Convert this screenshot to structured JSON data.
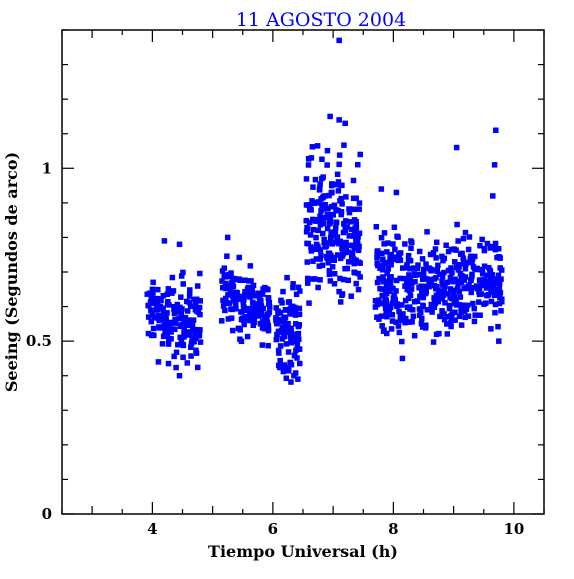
{
  "chart_data": {
    "type": "scatter",
    "title": "11 AGOSTO 2004",
    "xlabel": "Tiempo Universal (h)",
    "ylabel": "Seeing (Segundos de arco)",
    "xlim": [
      2.5,
      10.5
    ],
    "ylim": [
      0,
      1.4
    ],
    "xticks": [
      4,
      6,
      8,
      10
    ],
    "xtick_labels": [
      "4",
      "6",
      "8",
      "10"
    ],
    "yticks": [
      0,
      0.5,
      1
    ],
    "ytick_labels": [
      "0",
      "0.5",
      "1"
    ],
    "grid": false,
    "point_color": "#0000ff",
    "point_style": "filled-square",
    "clusters": [
      {
        "x_range": [
          3.9,
          4.25
        ],
        "y_mean": 0.58,
        "y_spread": 0.04,
        "n": 60
      },
      {
        "x_range": [
          4.25,
          4.8
        ],
        "y_mean": 0.56,
        "y_spread": 0.06,
        "n": 110
      },
      {
        "x_range": [
          5.15,
          5.45
        ],
        "y_mean": 0.64,
        "y_spread": 0.05,
        "n": 55
      },
      {
        "x_range": [
          5.45,
          5.95
        ],
        "y_mean": 0.6,
        "y_spread": 0.045,
        "n": 110
      },
      {
        "x_range": [
          6.05,
          6.45
        ],
        "y_mean": 0.53,
        "y_spread": 0.07,
        "n": 110
      },
      {
        "x_range": [
          6.55,
          7.0
        ],
        "y_mean": 0.82,
        "y_spread": 0.1,
        "n": 120
      },
      {
        "x_range": [
          7.0,
          7.45
        ],
        "y_mean": 0.82,
        "y_spread": 0.1,
        "n": 110
      },
      {
        "x_range": [
          7.7,
          8.3
        ],
        "y_mean": 0.66,
        "y_spread": 0.07,
        "n": 140
      },
      {
        "x_range": [
          8.3,
          9.05
        ],
        "y_mean": 0.66,
        "y_spread": 0.07,
        "n": 150
      },
      {
        "x_range": [
          9.05,
          9.8
        ],
        "y_mean": 0.68,
        "y_spread": 0.07,
        "n": 150
      }
    ],
    "outliers": [
      {
        "x": 7.1,
        "y": 1.37
      },
      {
        "x": 6.95,
        "y": 1.15
      },
      {
        "x": 7.1,
        "y": 1.14
      },
      {
        "x": 7.2,
        "y": 1.13
      },
      {
        "x": 7.45,
        "y": 1.04
      },
      {
        "x": 9.05,
        "y": 1.06
      },
      {
        "x": 9.7,
        "y": 1.11
      },
      {
        "x": 9.68,
        "y": 1.01
      },
      {
        "x": 7.8,
        "y": 0.94
      },
      {
        "x": 9.65,
        "y": 0.92
      },
      {
        "x": 8.05,
        "y": 0.93
      },
      {
        "x": 4.2,
        "y": 0.79
      },
      {
        "x": 4.45,
        "y": 0.78
      },
      {
        "x": 5.25,
        "y": 0.8
      },
      {
        "x": 4.1,
        "y": 0.44
      },
      {
        "x": 4.45,
        "y": 0.4
      },
      {
        "x": 6.35,
        "y": 0.4
      },
      {
        "x": 8.15,
        "y": 0.45
      },
      {
        "x": 9.75,
        "y": 0.5
      },
      {
        "x": 7.3,
        "y": 0.63
      },
      {
        "x": 6.6,
        "y": 0.61
      }
    ]
  }
}
